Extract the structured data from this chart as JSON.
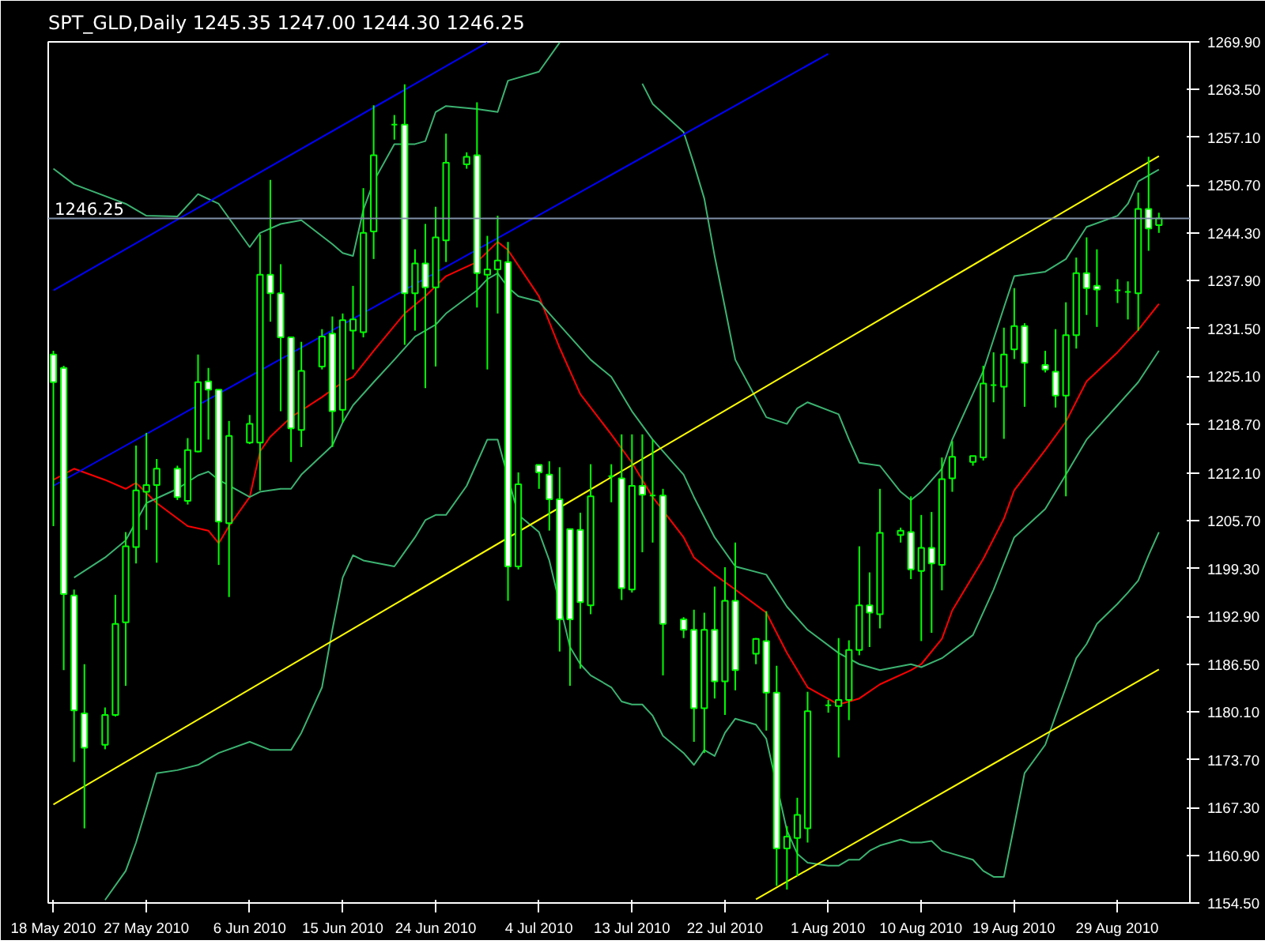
{
  "chart_data": {
    "type": "candlestick",
    "title": "SPT_GLD,Daily  1245.35 1247.00 1244.30 1246.25",
    "color": "#00ff00",
    "x": [
      "2010-05-18",
      "2010-05-19",
      "2010-05-20",
      "2010-05-21",
      "2010-05-23",
      "2010-05-24",
      "2010-05-25",
      "2010-05-26",
      "2010-05-27",
      "2010-05-28",
      "2010-05-30",
      "2010-05-31",
      "2010-06-01",
      "2010-06-02",
      "2010-06-03",
      "2010-06-04",
      "2010-06-06",
      "2010-06-07",
      "2010-06-08",
      "2010-06-09",
      "2010-06-10",
      "2010-06-11",
      "2010-06-13",
      "2010-06-14",
      "2010-06-15",
      "2010-06-16",
      "2010-06-17",
      "2010-06-18",
      "2010-06-20",
      "2010-06-21",
      "2010-06-22",
      "2010-06-23",
      "2010-06-24",
      "2010-06-25",
      "2010-06-27",
      "2010-06-28",
      "2010-06-29",
      "2010-06-30",
      "2010-07-01",
      "2010-07-02",
      "2010-07-04",
      "2010-07-05",
      "2010-07-06",
      "2010-07-07",
      "2010-07-08",
      "2010-07-09",
      "2010-07-11",
      "2010-07-12",
      "2010-07-13",
      "2010-07-14",
      "2010-07-15",
      "2010-07-16",
      "2010-07-18",
      "2010-07-19",
      "2010-07-20",
      "2010-07-21",
      "2010-07-22",
      "2010-07-23",
      "2010-07-25",
      "2010-07-26",
      "2010-07-27",
      "2010-07-28",
      "2010-07-29",
      "2010-07-30",
      "2010-08-01",
      "2010-08-02",
      "2010-08-03",
      "2010-08-04",
      "2010-08-05",
      "2010-08-06",
      "2010-08-08",
      "2010-08-09",
      "2010-08-10",
      "2010-08-11",
      "2010-08-12",
      "2010-08-13",
      "2010-08-15",
      "2010-08-16",
      "2010-08-17",
      "2010-08-18",
      "2010-08-19",
      "2010-08-20",
      "2010-08-22",
      "2010-08-23",
      "2010-08-24",
      "2010-08-25",
      "2010-08-26",
      "2010-08-27",
      "2010-08-29",
      "2010-08-30",
      "2010-08-31",
      "2010-09-01",
      "2010-09-02"
    ],
    "ohlc": [
      [
        1228.0,
        1228.5,
        1205.0,
        1224.3
      ],
      [
        1226.2,
        1226.5,
        1185.7,
        1195.9
      ],
      [
        1195.7,
        1196.5,
        1173.4,
        1180.3
      ],
      [
        1179.9,
        1186.5,
        1164.5,
        1175.3
      ],
      [
        1175.7,
        1180.7,
        1175.1,
        1179.7
      ],
      [
        1179.7,
        1195.8,
        1179.5,
        1191.9
      ],
      [
        1192.1,
        1204.2,
        1183.6,
        1202.3
      ],
      [
        1202.2,
        1215.8,
        1200.0,
        1209.8
      ],
      [
        1209.6,
        1217.5,
        1204.5,
        1210.5
      ],
      [
        1210.5,
        1214.0,
        1200.1,
        1212.7
      ],
      [
        1212.7,
        1213.1,
        1208.5,
        1208.9
      ],
      [
        1208.4,
        1216.8,
        1207.9,
        1215.2
      ],
      [
        1215.0,
        1228.0,
        1214.9,
        1224.3
      ],
      [
        1224.4,
        1226.2,
        1216.6,
        1223.3
      ],
      [
        1223.3,
        1223.3,
        1199.8,
        1205.6
      ],
      [
        1205.4,
        1219.1,
        1195.5,
        1217.1
      ],
      [
        1216.2,
        1219.9,
        1216.0,
        1218.7
      ],
      [
        1216.2,
        1244.1,
        1209.8,
        1238.7
      ],
      [
        1238.7,
        1251.4,
        1232.4,
        1236.2
      ],
      [
        1236.2,
        1240.1,
        1220.4,
        1230.3
      ],
      [
        1230.3,
        1230.3,
        1213.6,
        1218.1
      ],
      [
        1217.9,
        1229.7,
        1215.6,
        1225.8
      ],
      [
        1226.4,
        1231.4,
        1226.0,
        1230.4
      ],
      [
        1230.8,
        1233.1,
        1215.6,
        1220.4
      ],
      [
        1220.6,
        1233.5,
        1218.9,
        1232.6
      ],
      [
        1231.2,
        1237.2,
        1226.0,
        1232.7
      ],
      [
        1231.0,
        1250.3,
        1230.3,
        1244.3
      ],
      [
        1244.5,
        1261.4,
        1240.8,
        1254.7
      ],
      [
        1258.8,
        1260.1,
        1256.8,
        1258.8
      ],
      [
        1258.8,
        1264.2,
        1229.3,
        1236.2
      ],
      [
        1236.2,
        1242.1,
        1231.2,
        1240.2
      ],
      [
        1240.2,
        1245.5,
        1223.5,
        1237.0
      ],
      [
        1237.0,
        1247.8,
        1226.4,
        1243.7
      ],
      [
        1243.3,
        1257.6,
        1240.4,
        1253.7
      ],
      [
        1253.5,
        1255.1,
        1252.9,
        1254.5
      ],
      [
        1254.7,
        1261.8,
        1234.3,
        1238.9
      ],
      [
        1238.7,
        1243.9,
        1226.0,
        1239.4
      ],
      [
        1239.4,
        1246.6,
        1233.5,
        1240.6
      ],
      [
        1240.4,
        1243.1,
        1195.0,
        1199.6
      ],
      [
        1199.6,
        1212.2,
        1199.2,
        1210.6
      ],
      [
        1213.2,
        1213.2,
        1210.0,
        1212.2
      ],
      [
        1211.9,
        1213.7,
        1204.4,
        1208.6
      ],
      [
        1208.6,
        1212.9,
        1188.2,
        1192.5
      ],
      [
        1204.6,
        1204.6,
        1183.6,
        1192.5
      ],
      [
        1204.5,
        1206.8,
        1185.9,
        1194.8
      ],
      [
        1194.4,
        1213.3,
        1193.2,
        1209.0
      ],
      [
        1211.7,
        1213.3,
        1208.2,
        1211.7
      ],
      [
        1211.4,
        1217.3,
        1195.1,
        1196.7
      ],
      [
        1196.5,
        1217.3,
        1196.1,
        1210.4
      ],
      [
        1210.4,
        1217.3,
        1201.5,
        1209.2
      ],
      [
        1209.1,
        1216.6,
        1202.8,
        1209.1
      ],
      [
        1209.1,
        1210.0,
        1185.0,
        1191.9
      ],
      [
        1192.5,
        1192.8,
        1190.0,
        1191.1
      ],
      [
        1191.1,
        1193.8,
        1176.1,
        1180.6
      ],
      [
        1180.6,
        1193.4,
        1174.6,
        1191.1
      ],
      [
        1191.1,
        1196.9,
        1181.9,
        1184.2
      ],
      [
        1184.2,
        1199.5,
        1179.7,
        1195.0
      ],
      [
        1195.0,
        1202.8,
        1183.0,
        1185.7
      ],
      [
        1187.9,
        1190.0,
        1186.5,
        1189.9
      ],
      [
        1189.6,
        1193.6,
        1177.6,
        1182.7
      ],
      [
        1182.7,
        1186.3,
        1156.8,
        1161.8
      ],
      [
        1161.8,
        1164.8,
        1156.3,
        1163.4
      ],
      [
        1163.2,
        1168.6,
        1158.1,
        1166.3
      ],
      [
        1164.5,
        1182.8,
        1162.6,
        1180.2
      ],
      [
        1181.0,
        1181.7,
        1180.0,
        1181.0
      ],
      [
        1180.9,
        1190.0,
        1174.0,
        1181.7
      ],
      [
        1181.7,
        1189.7,
        1179.0,
        1188.4
      ],
      [
        1188.4,
        1202.3,
        1187.7,
        1194.4
      ],
      [
        1194.4,
        1198.8,
        1188.8,
        1193.4
      ],
      [
        1193.2,
        1210.0,
        1191.3,
        1204.1
      ],
      [
        1203.8,
        1204.8,
        1202.8,
        1204.4
      ],
      [
        1204.2,
        1209.0,
        1197.9,
        1199.2
      ],
      [
        1199.0,
        1206.5,
        1189.6,
        1202.1
      ],
      [
        1202.1,
        1206.9,
        1190.7,
        1200.0
      ],
      [
        1199.8,
        1214.2,
        1196.4,
        1211.3
      ],
      [
        1211.4,
        1216.4,
        1209.6,
        1214.3
      ],
      [
        1213.6,
        1214.4,
        1213.1,
        1214.4
      ],
      [
        1214.2,
        1226.5,
        1213.8,
        1224.1
      ],
      [
        1223.9,
        1228.3,
        1221.6,
        1223.9
      ],
      [
        1223.7,
        1231.6,
        1216.7,
        1228.0
      ],
      [
        1228.7,
        1236.9,
        1227.4,
        1231.8
      ],
      [
        1231.8,
        1232.2,
        1221.0,
        1226.9
      ],
      [
        1226.6,
        1228.5,
        1225.6,
        1226.0
      ],
      [
        1225.7,
        1231.4,
        1220.9,
        1222.5
      ],
      [
        1222.5,
        1235.0,
        1209.0,
        1230.6
      ],
      [
        1230.6,
        1241.0,
        1228.8,
        1238.9
      ],
      [
        1238.9,
        1243.7,
        1233.3,
        1236.9
      ],
      [
        1237.2,
        1242.1,
        1231.7,
        1236.7
      ],
      [
        1236.6,
        1238.1,
        1234.9,
        1236.6
      ],
      [
        1236.4,
        1237.8,
        1232.7,
        1236.4
      ],
      [
        1236.2,
        1249.7,
        1231.2,
        1247.5
      ],
      [
        1247.5,
        1254.5,
        1241.9,
        1244.9
      ],
      [
        1245.35,
        1247.0,
        1244.3,
        1246.25
      ]
    ],
    "series": [
      {
        "type": "line",
        "color": "#ff0000",
        "x": [
          "2010-05-18",
          "2010-05-20",
          "2010-05-23",
          "2010-05-25",
          "2010-05-26",
          "2010-05-28",
          "2010-05-31",
          "2010-06-02",
          "2010-06-03",
          "2010-06-04",
          "2010-06-06",
          "2010-06-07",
          "2010-06-08",
          "2010-06-10",
          "2010-06-13",
          "2010-06-15",
          "2010-06-16",
          "2010-06-18",
          "2010-06-21",
          "2010-06-23",
          "2010-06-25",
          "2010-06-28",
          "2010-06-30",
          "2010-07-01",
          "2010-07-04",
          "2010-07-06",
          "2010-07-08",
          "2010-07-11",
          "2010-07-13",
          "2010-07-15",
          "2010-07-18",
          "2010-07-19",
          "2010-07-21",
          "2010-07-23",
          "2010-07-26",
          "2010-07-28",
          "2010-07-30",
          "2010-08-02",
          "2010-08-04",
          "2010-08-06",
          "2010-08-09",
          "2010-08-10",
          "2010-08-12",
          "2010-08-13",
          "2010-08-16",
          "2010-08-18",
          "2010-08-19",
          "2010-08-22",
          "2010-08-24",
          "2010-08-26",
          "2010-08-29",
          "2010-08-31",
          "2010-09-02"
        ],
        "values": [
          1211.2,
          1212.7,
          1211.2,
          1210.0,
          1210.8,
          1208.1,
          1205.0,
          1204.4,
          1202.7,
          1205.0,
          1208.9,
          1215.0,
          1217.0,
          1219.6,
          1222.3,
          1224.3,
          1225.0,
          1228.5,
          1233.5,
          1235.8,
          1238.5,
          1240.4,
          1243.1,
          1242.0,
          1235.8,
          1228.9,
          1222.7,
          1217.3,
          1213.5,
          1208.9,
          1203.5,
          1200.8,
          1198.5,
          1196.5,
          1193.4,
          1188.0,
          1183.4,
          1181.1,
          1181.9,
          1183.8,
          1185.7,
          1186.5,
          1189.9,
          1193.7,
          1200.6,
          1206.0,
          1209.8,
          1215.2,
          1219.0,
          1224.4,
          1228.3,
          1231.3,
          1234.8
        ]
      },
      {
        "type": "line",
        "color": "#3cb371",
        "x": [
          "2010-05-18",
          "2010-05-20",
          "2010-05-25",
          "2010-05-27",
          "2010-05-30",
          "2010-06-01",
          "2010-06-03",
          "2010-06-06",
          "2010-06-07",
          "2010-06-09",
          "2010-06-11",
          "2010-06-14",
          "2010-06-15",
          "2010-06-16",
          "2010-06-17",
          "2010-06-18",
          "2010-06-20",
          "2010-06-22",
          "2010-06-23",
          "2010-06-24",
          "2010-06-25",
          "2010-06-28",
          "2010-06-30",
          "2010-07-01",
          "2010-07-04",
          "2010-07-06",
          "2010-07-07",
          "2010-07-13",
          "2010-07-14",
          "2010-07-15",
          "2010-07-18",
          "2010-07-19",
          "2010-07-20",
          "2010-07-21",
          "2010-07-22",
          "2010-07-23",
          "2010-07-26",
          "2010-07-28",
          "2010-07-29",
          "2010-07-30",
          "2010-08-02",
          "2010-08-03",
          "2010-08-04",
          "2010-08-06",
          "2010-08-08",
          "2010-08-09",
          "2010-08-10",
          "2010-08-12",
          "2010-08-13",
          "2010-08-16",
          "2010-08-18",
          "2010-08-19",
          "2010-08-22",
          "2010-08-24",
          "2010-08-26",
          "2010-08-29",
          "2010-08-30",
          "2010-08-31",
          "2010-09-02"
        ],
        "values": [
          1252.9,
          1250.8,
          1248.2,
          1246.6,
          1246.5,
          1249.5,
          1248.2,
          1242.4,
          1244.3,
          1245.5,
          1246.0,
          1242.8,
          1241.6,
          1241.2,
          1247.4,
          1251.2,
          1256.2,
          1256.2,
          1256.6,
          1260.5,
          1261.3,
          1260.9,
          1260.5,
          1264.7,
          1265.9,
          1269.8,
          null,
          null,
          1264.3,
          1261.6,
          1257.8,
          1253.5,
          1248.9,
          1241.2,
          1234.3,
          1227.3,
          1219.6,
          1218.7,
          1220.8,
          1221.6,
          1220.0,
          1216.6,
          1213.5,
          1213.1,
          1209.6,
          1208.5,
          1209.6,
          1212.7,
          1216.6,
          1225.8,
          1234.3,
          1238.5,
          1239.1,
          1240.8,
          1245.1,
          1246.6,
          1248.2,
          1251.2,
          1252.8
        ]
      },
      {
        "type": "line",
        "color": "#3cb371",
        "x": [
          "2010-05-20",
          "2010-05-23",
          "2010-05-25",
          "2010-05-27",
          "2010-05-30",
          "2010-06-01",
          "2010-06-02",
          "2010-06-03",
          "2010-06-06",
          "2010-06-07",
          "2010-06-09",
          "2010-06-10",
          "2010-06-11",
          "2010-06-14",
          "2010-06-15",
          "2010-06-16",
          "2010-06-18",
          "2010-06-20",
          "2010-06-22",
          "2010-06-24",
          "2010-06-25",
          "2010-06-28",
          "2010-06-29",
          "2010-06-30",
          "2010-07-01",
          "2010-07-02",
          "2010-07-04",
          "2010-07-05",
          "2010-07-07",
          "2010-07-09",
          "2010-07-11",
          "2010-07-12",
          "2010-07-13",
          "2010-07-15",
          "2010-07-18",
          "2010-07-19",
          "2010-07-21",
          "2010-07-23",
          "2010-07-26",
          "2010-07-28",
          "2010-07-30",
          "2010-08-02",
          "2010-08-04",
          "2010-08-06",
          "2010-08-09",
          "2010-08-10",
          "2010-08-12",
          "2010-08-15",
          "2010-08-17",
          "2010-08-19",
          "2010-08-22",
          "2010-08-24",
          "2010-08-26",
          "2010-08-29",
          "2010-08-31",
          "2010-09-02"
        ],
        "values": [
          1198.1,
          1200.8,
          1203.1,
          1208.1,
          1210.0,
          1211.8,
          1212.3,
          1211.2,
          1208.9,
          1209.6,
          1210.0,
          1210.0,
          1211.9,
          1215.8,
          1218.9,
          1221.2,
          1224.3,
          1227.3,
          1230.4,
          1232.0,
          1233.5,
          1236.6,
          1238.1,
          1238.9,
          1237.0,
          1235.8,
          1235.1,
          1233.5,
          1230.4,
          1227.3,
          1225.0,
          1222.7,
          1220.4,
          1216.6,
          1211.9,
          1208.9,
          1203.5,
          1199.6,
          1198.5,
          1194.2,
          1191.1,
          1188.0,
          1186.5,
          1185.7,
          1186.5,
          1186.1,
          1187.3,
          1190.4,
          1196.5,
          1203.5,
          1207.3,
          1211.9,
          1216.6,
          1221.2,
          1224.3,
          1228.5
        ]
      },
      {
        "type": "line",
        "color": "#3cb371",
        "x": [
          "2010-05-23",
          "2010-05-25",
          "2010-05-26",
          "2010-05-27",
          "2010-05-28",
          "2010-05-30",
          "2010-06-01",
          "2010-06-03",
          "2010-06-06",
          "2010-06-08",
          "2010-06-10",
          "2010-06-11",
          "2010-06-13",
          "2010-06-14",
          "2010-06-15",
          "2010-06-16",
          "2010-06-17",
          "2010-06-20",
          "2010-06-22",
          "2010-06-23",
          "2010-06-24",
          "2010-06-25",
          "2010-06-27",
          "2010-06-28",
          "2010-06-29",
          "2010-06-30",
          "2010-07-02",
          "2010-07-04",
          "2010-07-05",
          "2010-07-07",
          "2010-07-08",
          "2010-07-09",
          "2010-07-11",
          "2010-07-12",
          "2010-07-13",
          "2010-07-14",
          "2010-07-15",
          "2010-07-16",
          "2010-07-18",
          "2010-07-19",
          "2010-07-20",
          "2010-07-21",
          "2010-07-22",
          "2010-07-23",
          "2010-07-25",
          "2010-07-26",
          "2010-07-28",
          "2010-07-29",
          "2010-07-30",
          "2010-08-01",
          "2010-08-02",
          "2010-08-03",
          "2010-08-04",
          "2010-08-05",
          "2010-08-06",
          "2010-08-08",
          "2010-08-09",
          "2010-08-10",
          "2010-08-11",
          "2010-08-12",
          "2010-08-13",
          "2010-08-15",
          "2010-08-16",
          "2010-08-17",
          "2010-08-18",
          "2010-08-19",
          "2010-08-20",
          "2010-08-22",
          "2010-08-23",
          "2010-08-24",
          "2010-08-25",
          "2010-08-26",
          "2010-08-27",
          "2010-08-29",
          "2010-08-30",
          "2010-08-31",
          "2010-09-01",
          "2010-09-02"
        ],
        "values": [
          1154.9,
          1158.8,
          1162.6,
          1167.2,
          1171.9,
          1172.3,
          1173.0,
          1174.6,
          1176.1,
          1175.0,
          1175.0,
          1177.3,
          1183.4,
          1191.1,
          1198.1,
          1201.1,
          1200.4,
          1199.6,
          1203.5,
          1205.8,
          1206.5,
          1206.5,
          1210.4,
          1213.5,
          1216.6,
          1216.6,
          1206.5,
          1204.2,
          1200.4,
          1188.8,
          1186.5,
          1185.0,
          1183.4,
          1181.5,
          1181.1,
          1181.1,
          1179.6,
          1176.9,
          1174.6,
          1173.0,
          1175.0,
          1174.2,
          1177.3,
          1179.2,
          1178.4,
          1176.5,
          1164.2,
          1161.1,
          1159.9,
          1159.5,
          1159.5,
          1160.3,
          1160.3,
          1161.5,
          1162.2,
          1163.0,
          1162.6,
          1162.6,
          1162.8,
          1161.5,
          1161.1,
          1160.3,
          1158.8,
          1158.0,
          1158.0,
          1164.9,
          1171.9,
          1175.7,
          1179.6,
          1183.4,
          1187.3,
          1189.2,
          1191.9,
          1194.6,
          1196.1,
          1197.7,
          1201.1,
          1204.2
        ]
      },
      {
        "type": "line",
        "color": "#0000ff",
        "x": [
          "2010-05-18",
          "2010-06-29"
        ],
        "values": [
          1236.6,
          1269.8
        ]
      },
      {
        "type": "line",
        "color": "#0000ff",
        "x": [
          "2010-05-18",
          "2010-08-01"
        ],
        "values": [
          1210.4,
          1268.3
        ]
      },
      {
        "type": "line",
        "color": "#ffff00",
        "x": [
          "2010-05-18",
          "2010-09-02"
        ],
        "values": [
          1167.7,
          1254.6
        ]
      },
      {
        "type": "line",
        "color": "#ffff00",
        "x": [
          "2010-07-25",
          "2010-09-02"
        ],
        "values": [
          1155.0,
          1185.8
        ]
      }
    ],
    "ref_lines": [
      {
        "axis": "y",
        "value": 1246.25,
        "label": "1246.25",
        "color": "#8090a8"
      }
    ],
    "xlim": [
      "2010-05-17T12:00",
      "2010-09-05"
    ],
    "xticks": [
      {
        "value": "2010-05-18",
        "label": "18 May 2010"
      },
      {
        "value": "2010-05-27",
        "label": "27 May 2010"
      },
      {
        "value": "2010-06-06",
        "label": "6 Jun 2010"
      },
      {
        "value": "2010-06-15",
        "label": "15 Jun 2010"
      },
      {
        "value": "2010-06-24",
        "label": "24 Jun 2010"
      },
      {
        "value": "2010-07-04",
        "label": "4 Jul 2010"
      },
      {
        "value": "2010-07-13",
        "label": "13 Jul 2010"
      },
      {
        "value": "2010-07-22",
        "label": "22 Jul 2010"
      },
      {
        "value": "2010-08-01",
        "label": "1 Aug 2010"
      },
      {
        "value": "2010-08-10",
        "label": "10 Aug 2010"
      },
      {
        "value": "2010-08-19",
        "label": "19 Aug 2010"
      },
      {
        "value": "2010-08-29",
        "label": "29 Aug 2010"
      }
    ],
    "ylim": [
      1154.5,
      1269.9
    ],
    "yticks": [
      {
        "value": 1269.9,
        "label": "1269.90"
      },
      {
        "value": 1263.5,
        "label": "1263.50"
      },
      {
        "value": 1257.1,
        "label": "1257.10"
      },
      {
        "value": 1250.7,
        "label": "1250.70"
      },
      {
        "value": 1244.3,
        "label": "1244.30"
      },
      {
        "value": 1237.9,
        "label": "1237.90"
      },
      {
        "value": 1231.5,
        "label": "1231.50"
      },
      {
        "value": 1225.1,
        "label": "1225.10"
      },
      {
        "value": 1218.7,
        "label": "1218.70"
      },
      {
        "value": 1212.1,
        "label": "1212.10"
      },
      {
        "value": 1205.7,
        "label": "1205.70"
      },
      {
        "value": 1199.3,
        "label": "1199.30"
      },
      {
        "value": 1192.9,
        "label": "1192.90"
      },
      {
        "value": 1186.5,
        "label": "1186.50"
      },
      {
        "value": 1180.1,
        "label": "1180.10"
      },
      {
        "value": 1173.7,
        "label": "1173.70"
      },
      {
        "value": 1167.3,
        "label": "1167.30"
      },
      {
        "value": 1160.9,
        "label": "1160.90"
      },
      {
        "value": 1154.5,
        "label": "1154.50"
      }
    ]
  }
}
